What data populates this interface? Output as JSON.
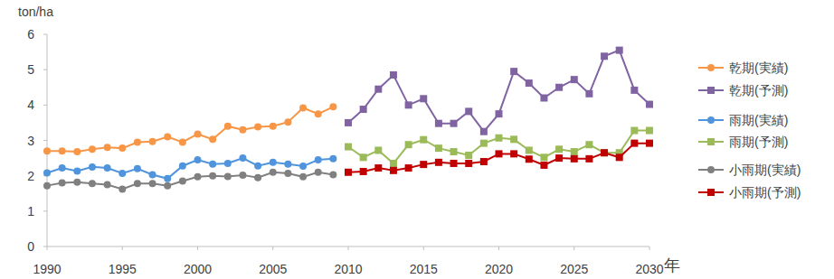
{
  "chart_data": {
    "type": "line",
    "y_label": "ton/ha",
    "x_label": "年",
    "x": [
      1990,
      1991,
      1992,
      1993,
      1994,
      1995,
      1996,
      1997,
      1998,
      1999,
      2000,
      2001,
      2002,
      2003,
      2004,
      2005,
      2006,
      2007,
      2008,
      2009,
      2010,
      2011,
      2012,
      2013,
      2014,
      2015,
      2016,
      2017,
      2018,
      2019,
      2020,
      2021,
      2022,
      2023,
      2024,
      2025,
      2026,
      2027,
      2028,
      2029,
      2030
    ],
    "xlim": [
      1990,
      2030
    ],
    "xticks": [
      1990,
      1995,
      2000,
      2005,
      2010,
      2015,
      2020,
      2025,
      2030
    ],
    "ylim": [
      0,
      6
    ],
    "yticks": [
      0,
      1,
      2,
      3,
      4,
      5,
      6
    ],
    "grid": false,
    "legend": "right",
    "series": [
      {
        "name": "乾期(実績)",
        "color": "#f79646",
        "marker": "circle",
        "values": [
          2.7,
          2.7,
          2.68,
          2.75,
          2.8,
          2.78,
          2.95,
          2.97,
          3.1,
          2.95,
          3.18,
          3.03,
          3.4,
          3.3,
          3.38,
          3.4,
          3.52,
          3.92,
          3.75,
          3.95,
          null,
          null,
          null,
          null,
          null,
          null,
          null,
          null,
          null,
          null,
          null,
          null,
          null,
          null,
          null,
          null,
          null,
          null,
          null,
          null,
          null
        ]
      },
      {
        "name": "乾期(予測)",
        "color": "#8064a2",
        "marker": "square",
        "values": [
          null,
          null,
          null,
          null,
          null,
          null,
          null,
          null,
          null,
          null,
          null,
          null,
          null,
          null,
          null,
          null,
          null,
          null,
          null,
          null,
          3.5,
          3.88,
          4.45,
          4.85,
          4.0,
          4.18,
          3.48,
          3.48,
          3.82,
          3.25,
          3.75,
          4.95,
          4.62,
          4.2,
          4.5,
          4.72,
          4.32,
          5.38,
          5.55,
          4.42,
          4.02
        ]
      },
      {
        "name": "雨期(実績)",
        "color": "#4f94dc",
        "marker": "circle",
        "values": [
          2.08,
          2.22,
          2.13,
          2.25,
          2.22,
          2.07,
          2.2,
          2.03,
          1.92,
          2.28,
          2.45,
          2.33,
          2.35,
          2.5,
          2.28,
          2.38,
          2.33,
          2.27,
          2.45,
          2.48,
          null,
          null,
          null,
          null,
          null,
          null,
          null,
          null,
          null,
          null,
          null,
          null,
          null,
          null,
          null,
          null,
          null,
          null,
          null,
          null,
          null
        ]
      },
      {
        "name": "雨期(予測)",
        "color": "#9bbb59",
        "marker": "square",
        "values": [
          null,
          null,
          null,
          null,
          null,
          null,
          null,
          null,
          null,
          null,
          null,
          null,
          null,
          null,
          null,
          null,
          null,
          null,
          null,
          null,
          2.82,
          2.52,
          2.72,
          2.35,
          2.88,
          3.02,
          2.78,
          2.68,
          2.58,
          2.92,
          3.07,
          3.03,
          2.72,
          2.52,
          2.75,
          2.68,
          2.88,
          2.65,
          2.65,
          3.28,
          3.28
        ]
      },
      {
        "name": "小雨期(実績)",
        "color": "#808080",
        "marker": "circle",
        "values": [
          1.72,
          1.8,
          1.82,
          1.78,
          1.75,
          1.62,
          1.78,
          1.78,
          1.72,
          1.85,
          1.97,
          2.0,
          1.98,
          2.02,
          1.95,
          2.1,
          2.07,
          1.97,
          2.1,
          2.03,
          null,
          null,
          null,
          null,
          null,
          null,
          null,
          null,
          null,
          null,
          null,
          null,
          null,
          null,
          null,
          null,
          null,
          null,
          null,
          null,
          null
        ]
      },
      {
        "name": "小雨期(予測)",
        "color": "#c00000",
        "marker": "square",
        "values": [
          null,
          null,
          null,
          null,
          null,
          null,
          null,
          null,
          null,
          null,
          null,
          null,
          null,
          null,
          null,
          null,
          null,
          null,
          null,
          null,
          2.1,
          2.12,
          2.22,
          2.15,
          2.22,
          2.32,
          2.38,
          2.35,
          2.35,
          2.4,
          2.62,
          2.62,
          2.47,
          2.3,
          2.5,
          2.48,
          2.48,
          2.65,
          2.52,
          2.92,
          2.92
        ]
      }
    ]
  }
}
